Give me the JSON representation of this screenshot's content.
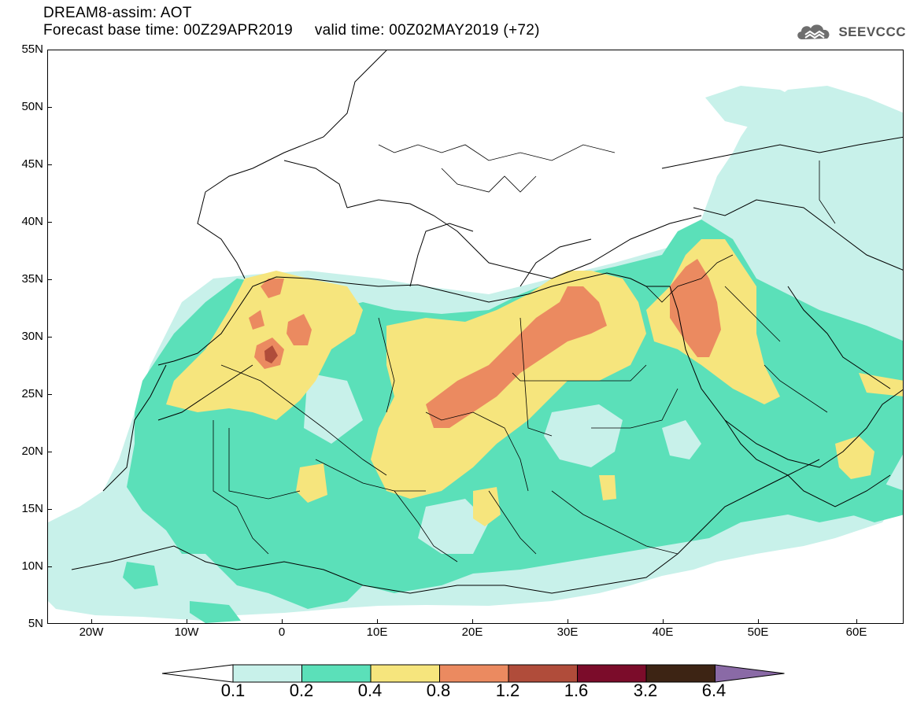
{
  "title": {
    "line1": "DREAM8-assim: AOT",
    "line2": "Forecast base time: 00Z29APR2019     valid time: 00Z02MAY2019 (+72)"
  },
  "logo": {
    "text": "SEEVCCC",
    "icon": "cloud-logo-icon",
    "color": "#555555"
  },
  "y_axis": {
    "labels": [
      "55N",
      "50N",
      "45N",
      "40N",
      "35N",
      "30N",
      "25N",
      "20N",
      "15N",
      "10N",
      "5N"
    ]
  },
  "x_axis": {
    "labels": [
      "20W",
      "10W",
      "0",
      "10E",
      "20E",
      "30E",
      "40E",
      "50E",
      "60E"
    ]
  },
  "map_data": {
    "variable": "AOT",
    "lon_range": [
      -25,
      65
    ],
    "lat_range": [
      5,
      55
    ],
    "plume_levels_note_free": true
  },
  "colorbar": {
    "labels": [
      "0.1",
      "0.2",
      "0.4",
      "0.8",
      "1.2",
      "1.6",
      "3.2",
      "6.4"
    ],
    "colors": [
      "#ffffff",
      "#c8f1ea",
      "#5be0b9",
      "#f6e57d",
      "#eb8a60",
      "#b04c3a",
      "#7b0c2a",
      "#3d2414",
      "#8a6aa6"
    ]
  }
}
